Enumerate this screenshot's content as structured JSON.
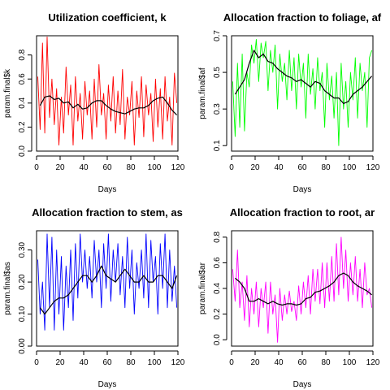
{
  "chart_data": [
    {
      "type": "line",
      "title": "Utilization coefficient, k",
      "xlabel": "Days",
      "ylabel": "param.final$k",
      "xlim": [
        0,
        120
      ],
      "ylim": [
        0.0,
        0.96
      ],
      "xticks": [
        "0",
        "20",
        "40",
        "60",
        "80",
        "100",
        "120"
      ],
      "yticks": [
        "0.0",
        "0.2",
        "0.4",
        "0.6",
        "0.8"
      ],
      "grid": false,
      "series": [
        {
          "color": "#ff0000",
          "x": [
            1,
            3,
            5,
            7,
            9,
            11,
            13,
            15,
            17,
            19,
            21,
            23,
            25,
            27,
            29,
            31,
            33,
            35,
            37,
            39,
            41,
            43,
            45,
            47,
            49,
            51,
            53,
            55,
            57,
            59,
            61,
            63,
            65,
            67,
            69,
            71,
            73,
            75,
            77,
            79,
            81,
            83,
            85,
            87,
            89,
            91,
            93,
            95,
            97,
            99,
            101,
            103,
            105,
            107,
            109,
            111,
            113,
            115,
            117,
            119
          ],
          "values": [
            0.62,
            0.18,
            0.9,
            0.15,
            0.95,
            0.28,
            0.6,
            0.22,
            0.52,
            0.05,
            0.45,
            0.15,
            0.7,
            0.3,
            0.55,
            0.05,
            0.62,
            0.25,
            0.48,
            0.1,
            0.58,
            0.3,
            0.5,
            0.1,
            0.6,
            0.2,
            0.72,
            0.3,
            0.48,
            0.1,
            0.55,
            0.25,
            0.62,
            0.15,
            0.5,
            0.22,
            0.68,
            0.1,
            0.45,
            0.3,
            0.58,
            0.05,
            0.5,
            0.28,
            0.62,
            0.12,
            0.55,
            0.3,
            0.48,
            0.08,
            0.6,
            0.2,
            0.52,
            0.1,
            0.62,
            0.25,
            0.45,
            0.05,
            0.65,
            0.4
          ]
        },
        {
          "color": "#000000",
          "x": [
            3,
            7,
            11,
            15,
            19,
            23,
            27,
            31,
            35,
            39,
            43,
            47,
            51,
            55,
            59,
            63,
            67,
            71,
            75,
            79,
            83,
            87,
            91,
            95,
            99,
            103,
            107,
            111,
            115,
            119
          ],
          "values": [
            0.38,
            0.45,
            0.46,
            0.43,
            0.44,
            0.4,
            0.41,
            0.36,
            0.39,
            0.35,
            0.36,
            0.4,
            0.42,
            0.42,
            0.38,
            0.35,
            0.33,
            0.32,
            0.31,
            0.33,
            0.35,
            0.36,
            0.36,
            0.38,
            0.42,
            0.44,
            0.45,
            0.4,
            0.34,
            0.3
          ]
        }
      ]
    },
    {
      "type": "line",
      "title": "Allocation fraction to foliage, af",
      "xlabel": "Days",
      "ylabel": "param.final$af",
      "xlim": [
        0,
        120
      ],
      "ylim": [
        0.07,
        0.7
      ],
      "xticks": [
        "0",
        "20",
        "40",
        "60",
        "80",
        "100",
        "120"
      ],
      "yticks": [
        "0.1",
        "0.3",
        "0.5",
        "0.7"
      ],
      "grid": false,
      "series": [
        {
          "color": "#00ff00",
          "x": [
            1,
            3,
            5,
            7,
            9,
            11,
            13,
            15,
            17,
            19,
            21,
            23,
            25,
            27,
            29,
            31,
            33,
            35,
            37,
            39,
            41,
            43,
            45,
            47,
            49,
            51,
            53,
            55,
            57,
            59,
            61,
            63,
            65,
            67,
            69,
            71,
            73,
            75,
            77,
            79,
            81,
            83,
            85,
            87,
            89,
            91,
            93,
            95,
            97,
            99,
            101,
            103,
            105,
            107,
            109,
            111,
            113,
            115,
            117,
            119
          ],
          "values": [
            0.45,
            0.15,
            0.55,
            0.2,
            0.6,
            0.18,
            0.5,
            0.42,
            0.65,
            0.55,
            0.68,
            0.45,
            0.66,
            0.58,
            0.67,
            0.4,
            0.62,
            0.5,
            0.65,
            0.3,
            0.6,
            0.45,
            0.55,
            0.35,
            0.62,
            0.4,
            0.58,
            0.3,
            0.6,
            0.42,
            0.55,
            0.25,
            0.6,
            0.38,
            0.52,
            0.3,
            0.58,
            0.4,
            0.5,
            0.2,
            0.55,
            0.35,
            0.48,
            0.25,
            0.5,
            0.1,
            0.55,
            0.3,
            0.45,
            0.2,
            0.5,
            0.35,
            0.58,
            0.25,
            0.55,
            0.4,
            0.5,
            0.2,
            0.58,
            0.62
          ]
        },
        {
          "color": "#000000",
          "x": [
            3,
            7,
            11,
            15,
            19,
            23,
            27,
            31,
            35,
            39,
            43,
            47,
            51,
            55,
            59,
            63,
            67,
            71,
            75,
            79,
            83,
            87,
            91,
            95,
            99,
            103,
            107,
            111,
            115,
            119
          ],
          "values": [
            0.38,
            0.42,
            0.46,
            0.55,
            0.62,
            0.58,
            0.6,
            0.56,
            0.55,
            0.52,
            0.5,
            0.48,
            0.47,
            0.45,
            0.46,
            0.44,
            0.42,
            0.45,
            0.44,
            0.4,
            0.38,
            0.36,
            0.36,
            0.33,
            0.34,
            0.38,
            0.4,
            0.42,
            0.45,
            0.48
          ]
        }
      ]
    },
    {
      "type": "line",
      "title": "Allocation fraction to stem, as",
      "xlabel": "Days",
      "ylabel": "param.final$as",
      "xlim": [
        0,
        120
      ],
      "ylim": [
        0.0,
        0.36
      ],
      "xticks": [
        "0",
        "20",
        "40",
        "60",
        "80",
        "100",
        "120"
      ],
      "yticks": [
        "0.00",
        "0.10",
        "0.20",
        "0.30"
      ],
      "grid": false,
      "series": [
        {
          "color": "#0000ff",
          "x": [
            1,
            3,
            5,
            7,
            9,
            11,
            13,
            15,
            17,
            19,
            21,
            23,
            25,
            27,
            29,
            31,
            33,
            35,
            37,
            39,
            41,
            43,
            45,
            47,
            49,
            51,
            53,
            55,
            57,
            59,
            61,
            63,
            65,
            67,
            69,
            71,
            73,
            75,
            77,
            79,
            81,
            83,
            85,
            87,
            89,
            91,
            93,
            95,
            97,
            99,
            101,
            103,
            105,
            107,
            109,
            111,
            113,
            115,
            117,
            119
          ],
          "values": [
            0.27,
            0.1,
            0.2,
            0.05,
            0.35,
            0.12,
            0.34,
            0.05,
            0.3,
            0.1,
            0.28,
            0.05,
            0.25,
            0.12,
            0.3,
            0.08,
            0.32,
            0.15,
            0.35,
            0.2,
            0.3,
            0.18,
            0.28,
            0.15,
            0.33,
            0.2,
            0.3,
            0.12,
            0.32,
            0.18,
            0.35,
            0.14,
            0.3,
            0.2,
            0.32,
            0.16,
            0.28,
            0.12,
            0.34,
            0.18,
            0.3,
            0.1,
            0.26,
            0.18,
            0.3,
            0.15,
            0.35,
            0.12,
            0.33,
            0.2,
            0.28,
            0.1,
            0.32,
            0.18,
            0.35,
            0.12,
            0.3,
            0.14,
            0.25,
            0.12
          ]
        },
        {
          "color": "#000000",
          "x": [
            3,
            7,
            11,
            15,
            19,
            23,
            27,
            31,
            35,
            39,
            43,
            47,
            51,
            55,
            59,
            63,
            67,
            71,
            75,
            79,
            83,
            87,
            91,
            95,
            99,
            103,
            107,
            111,
            115,
            119
          ],
          "values": [
            0.12,
            0.1,
            0.12,
            0.14,
            0.15,
            0.15,
            0.16,
            0.18,
            0.2,
            0.22,
            0.22,
            0.2,
            0.22,
            0.25,
            0.22,
            0.21,
            0.2,
            0.22,
            0.24,
            0.22,
            0.2,
            0.2,
            0.22,
            0.2,
            0.2,
            0.22,
            0.22,
            0.2,
            0.18,
            0.22
          ]
        }
      ]
    },
    {
      "type": "line",
      "title": "Allocation fraction to root, ar",
      "xlabel": "Days",
      "ylabel": "param.final$ar",
      "xlim": [
        0,
        120
      ],
      "ylim": [
        -0.05,
        0.85
      ],
      "xticks": [
        "0",
        "20",
        "40",
        "60",
        "80",
        "100",
        "120"
      ],
      "yticks": [
        "0.0",
        "0.2",
        "0.4",
        "0.6",
        "0.8"
      ],
      "grid": false,
      "series": [
        {
          "color": "#ff00ff",
          "x": [
            1,
            3,
            5,
            7,
            9,
            11,
            13,
            15,
            17,
            19,
            21,
            23,
            25,
            27,
            29,
            31,
            33,
            35,
            37,
            39,
            41,
            43,
            45,
            47,
            49,
            51,
            53,
            55,
            57,
            59,
            61,
            63,
            65,
            67,
            69,
            71,
            73,
            75,
            77,
            79,
            81,
            83,
            85,
            87,
            89,
            91,
            93,
            95,
            97,
            99,
            101,
            103,
            105,
            107,
            109,
            111,
            113,
            115,
            117,
            119
          ],
          "values": [
            0.55,
            0.3,
            0.7,
            0.25,
            0.45,
            0.15,
            0.5,
            0.1,
            0.4,
            0.2,
            0.45,
            0.1,
            0.4,
            0.25,
            0.45,
            0.05,
            0.45,
            0.2,
            0.35,
            -0.02,
            0.4,
            0.15,
            0.35,
            0.2,
            0.38,
            0.22,
            0.3,
            0.15,
            0.42,
            0.2,
            0.45,
            0.25,
            0.5,
            0.2,
            0.55,
            0.3,
            0.55,
            0.28,
            0.6,
            0.25,
            0.6,
            0.3,
            0.65,
            0.3,
            0.75,
            0.35,
            0.8,
            0.4,
            0.7,
            0.3,
            0.6,
            0.35,
            0.65,
            0.3,
            0.55,
            0.25,
            0.6,
            0.35,
            0.4,
            0.25
          ]
        },
        {
          "color": "#000000",
          "x": [
            3,
            7,
            11,
            15,
            19,
            23,
            27,
            31,
            35,
            39,
            43,
            47,
            51,
            55,
            59,
            63,
            67,
            71,
            75,
            79,
            83,
            87,
            91,
            95,
            99,
            103,
            107,
            111,
            115,
            119
          ],
          "values": [
            0.48,
            0.45,
            0.4,
            0.3,
            0.3,
            0.32,
            0.3,
            0.28,
            0.3,
            0.28,
            0.27,
            0.28,
            0.28,
            0.27,
            0.28,
            0.32,
            0.33,
            0.37,
            0.38,
            0.4,
            0.42,
            0.45,
            0.5,
            0.52,
            0.5,
            0.45,
            0.42,
            0.4,
            0.38,
            0.35
          ]
        }
      ]
    }
  ]
}
